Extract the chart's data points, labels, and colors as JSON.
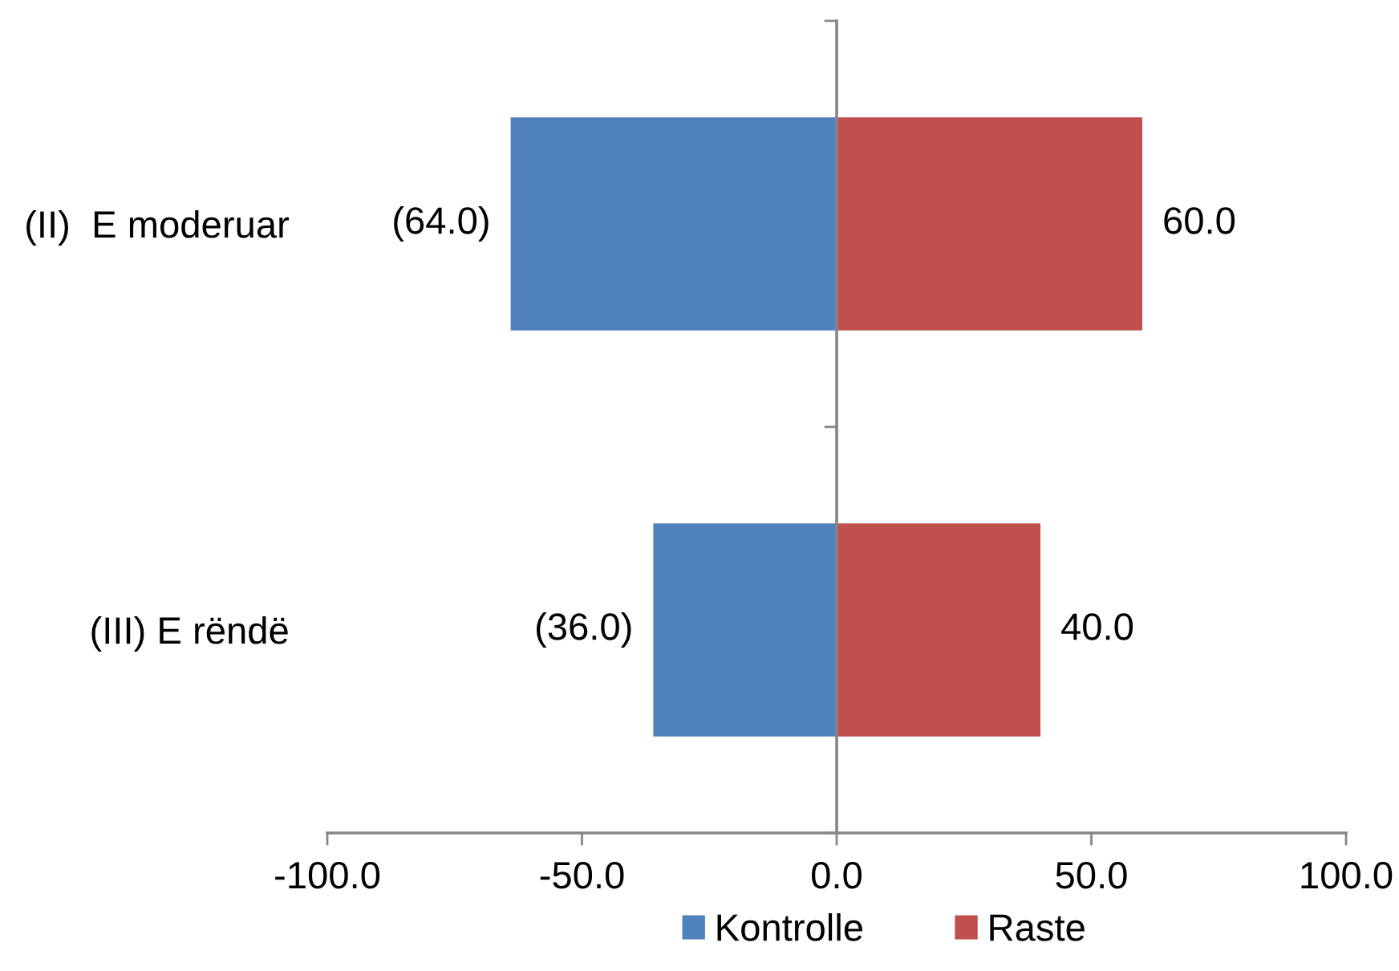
{
  "chart_data": {
    "type": "bar",
    "orientation": "horizontal",
    "stacked": true,
    "categories": [
      "(II)  E moderuar",
      "(III) E rëndë"
    ],
    "series": [
      {
        "name": "Kontrolle",
        "color": "#4f81bd",
        "values": [
          -64,
          -36
        ],
        "value_labels": [
          "(64.0)",
          "(36.0)"
        ]
      },
      {
        "name": "Raste",
        "color": "#c0504d",
        "values": [
          60,
          40
        ],
        "value_labels": [
          "60.0",
          "40.0"
        ]
      }
    ],
    "xlim": [
      -100,
      100
    ],
    "xticks": [
      {
        "value": -100,
        "label": "-100.0"
      },
      {
        "value": -50,
        "label": "-50.0"
      },
      {
        "value": 0,
        "label": "0.0"
      },
      {
        "value": 50,
        "label": "50.0"
      },
      {
        "value": 100,
        "label": "100.0"
      }
    ],
    "legend": "bottom"
  }
}
